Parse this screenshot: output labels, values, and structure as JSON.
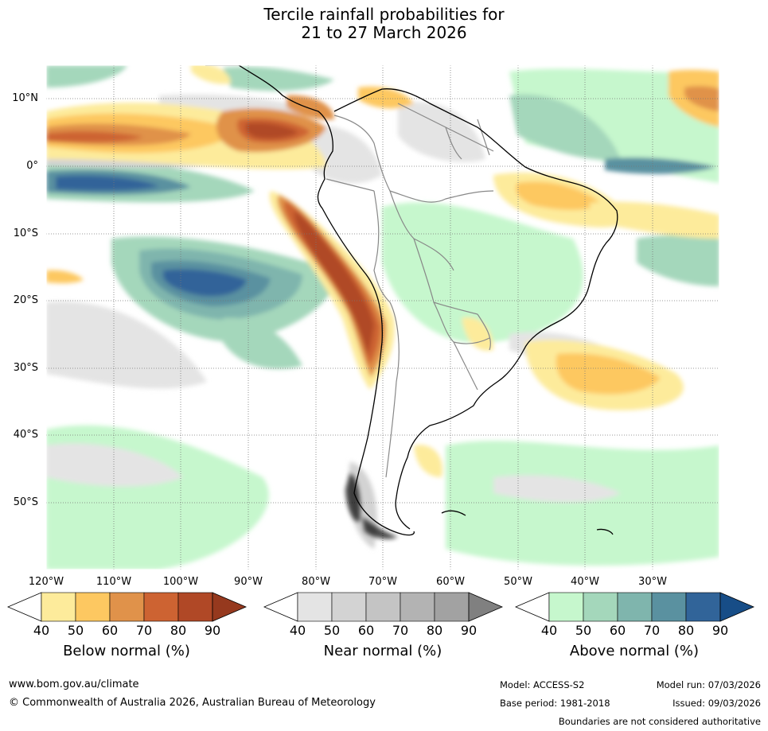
{
  "title": {
    "line1": "Tercile rainfall probabilities for",
    "line2": "21 to 27 March 2026"
  },
  "map": {
    "lat_labels": [
      "10°N",
      "0°",
      "10°S",
      "20°S",
      "30°S",
      "40°S",
      "50°S"
    ],
    "lon_labels": [
      "120°W",
      "110°W",
      "100°W",
      "90°W",
      "80°W",
      "70°W",
      "60°W",
      "50°W",
      "40°W",
      "30°W"
    ]
  },
  "colorbars": [
    {
      "name": "below",
      "title": "Below normal (%)",
      "ticks": [
        "40",
        "50",
        "60",
        "70",
        "80",
        "90"
      ],
      "colors": [
        "#ffffff",
        "#fdeb9b",
        "#fdc861",
        "#e0924a",
        "#cd6332",
        "#b04826",
        "#96391e"
      ]
    },
    {
      "name": "near",
      "title": "Near normal (%)",
      "ticks": [
        "40",
        "50",
        "60",
        "70",
        "80",
        "90"
      ],
      "colors": [
        "#ffffff",
        "#e4e4e4",
        "#d3d3d3",
        "#c4c4c4",
        "#b3b3b3",
        "#a2a2a2",
        "#808080"
      ]
    },
    {
      "name": "above",
      "title": "Above normal (%)",
      "ticks": [
        "40",
        "50",
        "60",
        "70",
        "80",
        "90"
      ],
      "colors": [
        "#ffffff",
        "#c6f7cd",
        "#a4d7bb",
        "#7fb5ad",
        "#5a91a0",
        "#316499",
        "#174d87"
      ]
    }
  ],
  "footer": {
    "website": "www.bom.gov.au/climate",
    "copyright": "© Commonwealth of Australia 2026, Australian Bureau of Meteorology",
    "model": "Model: ACCESS-S2",
    "base_period": "Base period: 1981-2018",
    "model_run": "Model run: 07/03/2026",
    "issued": "Issued: 09/03/2026",
    "disclaimer": "Boundaries are not considered authoritative"
  }
}
